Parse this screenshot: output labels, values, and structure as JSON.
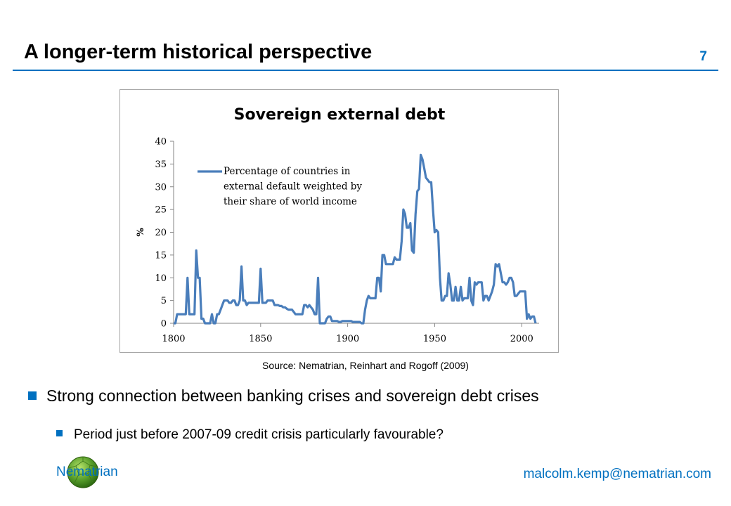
{
  "slide": {
    "title": "A longer-term historical perspective",
    "number": "7",
    "source": "Source: Nematrian, Reinhart and Rogoff (2009)",
    "bullets": [
      "Strong connection between banking crises and sovereign debt crises",
      "Period just before 2007-09 credit crisis particularly favourable?"
    ],
    "footer": {
      "brand": "Nematrian",
      "email": "malcolm.kemp@nematrian.com"
    },
    "accent_color": "#0070c0"
  },
  "chart_data": {
    "type": "line",
    "title": "Sovereign external debt",
    "xlabel": "",
    "ylabel": "%",
    "xlim": [
      1800,
      2010
    ],
    "ylim": [
      0,
      40
    ],
    "x_ticks": [
      1800,
      1850,
      1900,
      1950,
      2000
    ],
    "y_ticks": [
      0,
      5,
      10,
      15,
      20,
      25,
      30,
      35,
      40
    ],
    "grid": false,
    "legend_position": "top-left",
    "series": [
      {
        "name": "Percentage of countries in external default weighted by their share of world income",
        "legend_lines": [
          "Percentage of countries in",
          "external default weighted by",
          "their share of world income"
        ],
        "color": "#4a7ebb",
        "x": [
          1800,
          1801,
          1802,
          1803,
          1804,
          1805,
          1806,
          1807,
          1808,
          1809,
          1810,
          1811,
          1812,
          1813,
          1814,
          1815,
          1816,
          1817,
          1818,
          1819,
          1820,
          1821,
          1822,
          1823,
          1824,
          1825,
          1826,
          1827,
          1828,
          1829,
          1830,
          1831,
          1832,
          1833,
          1834,
          1835,
          1836,
          1837,
          1838,
          1839,
          1840,
          1841,
          1842,
          1843,
          1844,
          1845,
          1846,
          1847,
          1848,
          1849,
          1850,
          1851,
          1852,
          1853,
          1854,
          1855,
          1856,
          1857,
          1858,
          1859,
          1860,
          1861,
          1862,
          1863,
          1864,
          1865,
          1866,
          1867,
          1868,
          1869,
          1870,
          1871,
          1872,
          1873,
          1874,
          1875,
          1876,
          1877,
          1878,
          1879,
          1880,
          1881,
          1882,
          1883,
          1884,
          1885,
          1886,
          1887,
          1888,
          1889,
          1890,
          1891,
          1892,
          1893,
          1894,
          1895,
          1896,
          1897,
          1898,
          1899,
          1900,
          1901,
          1902,
          1903,
          1904,
          1905,
          1906,
          1907,
          1908,
          1909,
          1910,
          1911,
          1912,
          1913,
          1914,
          1915,
          1916,
          1917,
          1918,
          1919,
          1920,
          1921,
          1922,
          1923,
          1924,
          1925,
          1926,
          1927,
          1928,
          1929,
          1930,
          1931,
          1932,
          1933,
          1934,
          1935,
          1936,
          1937,
          1938,
          1939,
          1940,
          1941,
          1942,
          1943,
          1944,
          1945,
          1946,
          1947,
          1948,
          1949,
          1950,
          1951,
          1952,
          1953,
          1954,
          1955,
          1956,
          1957,
          1958,
          1959,
          1960,
          1961,
          1962,
          1963,
          1964,
          1965,
          1966,
          1967,
          1968,
          1969,
          1970,
          1971,
          1972,
          1973,
          1974,
          1975,
          1976,
          1977,
          1978,
          1979,
          1980,
          1981,
          1982,
          1983,
          1984,
          1985,
          1986,
          1987,
          1988,
          1989,
          1990,
          1991,
          1992,
          1993,
          1994,
          1995,
          1996,
          1997,
          1998,
          1999,
          2000,
          2001,
          2002,
          2003,
          2004,
          2005,
          2006,
          2007,
          2008
        ],
        "values": [
          0,
          0,
          2,
          2,
          2,
          2,
          2,
          2,
          10,
          2,
          2,
          2,
          2,
          16,
          10,
          10,
          1,
          1,
          0,
          0,
          0,
          0,
          2,
          0,
          0,
          2,
          2,
          3,
          4,
          5,
          5,
          5,
          4.5,
          4.5,
          5,
          5,
          4,
          4,
          5,
          12.5,
          5,
          5,
          4,
          4.5,
          4.5,
          4.5,
          4.5,
          4.5,
          4.5,
          4.5,
          12,
          4.5,
          4.5,
          4.5,
          5,
          5,
          5,
          5,
          4,
          4,
          4,
          3.8,
          3.8,
          3.5,
          3.5,
          3.2,
          3,
          3,
          3,
          2.5,
          2,
          2,
          2,
          2,
          2,
          4,
          4,
          3.5,
          4,
          3.5,
          3,
          2,
          2,
          10,
          0,
          0,
          0,
          0,
          1,
          1.5,
          1.5,
          0.5,
          0.5,
          0.5,
          0.5,
          0.3,
          0.3,
          0.5,
          0.5,
          0.5,
          0.5,
          0.5,
          0.5,
          0.3,
          0.3,
          0.3,
          0.3,
          0.3,
          0,
          0,
          3,
          5,
          6,
          5.5,
          5.5,
          5.5,
          5.5,
          10,
          10,
          7,
          15,
          15,
          13,
          13,
          13,
          13,
          13,
          14.5,
          14,
          14,
          14,
          18,
          25,
          24,
          21,
          21,
          22,
          16,
          15.5,
          24,
          29,
          29.5,
          37,
          36,
          34,
          32,
          31.5,
          31,
          31,
          25,
          20,
          20.5,
          20,
          10,
          5,
          5,
          6,
          6,
          11,
          8.5,
          5,
          5,
          8,
          5,
          5,
          8,
          5,
          5.5,
          5.5,
          5.5,
          10,
          5,
          4,
          9,
          8.5,
          9,
          9,
          9,
          5,
          6,
          6,
          5,
          6,
          7,
          8.5,
          13,
          12.5,
          13,
          11,
          9,
          9,
          8.5,
          9,
          10,
          10,
          9,
          6,
          6,
          6.5,
          7,
          7,
          7,
          7,
          1,
          2,
          1,
          1.5,
          1.5,
          0
        ]
      }
    ]
  }
}
